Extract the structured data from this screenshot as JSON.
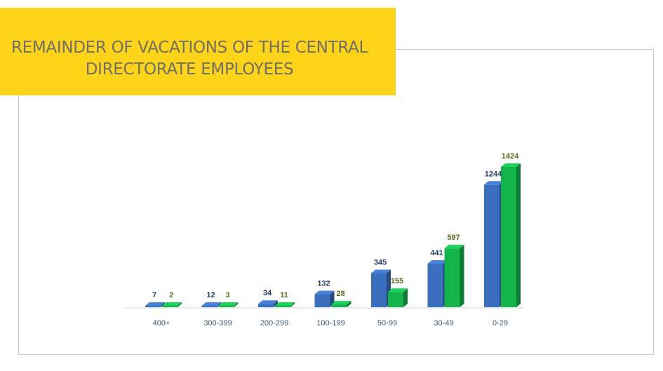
{
  "title": "REMAINDER OF VACATIONS OF THE CENTRAL DIRECTORATE EMPLOYEES",
  "colors": {
    "banner": "#fed418",
    "series_1": "#3a6fbe",
    "series_2": "#13b54a",
    "label_1": "#1f3d6b",
    "label_2": "#5a6a1c"
  },
  "chart_data": {
    "type": "bar",
    "title": "REMAINDER OF VACATIONS OF THE CENTRAL DIRECTORATE EMPLOYEES",
    "categories": [
      "400+",
      "300-399",
      "200-299",
      "100-199",
      "50-99",
      "30-49",
      "0-29"
    ],
    "series": [
      {
        "values": [
          7,
          12,
          34,
          132,
          345,
          441,
          1244
        ]
      },
      {
        "values": [
          2,
          3,
          11,
          28,
          155,
          597,
          1424
        ]
      }
    ],
    "ylim": [
      0,
      1424
    ],
    "grid": false,
    "legend": "none",
    "data_labels": true,
    "style": "3d-clustered-column"
  }
}
